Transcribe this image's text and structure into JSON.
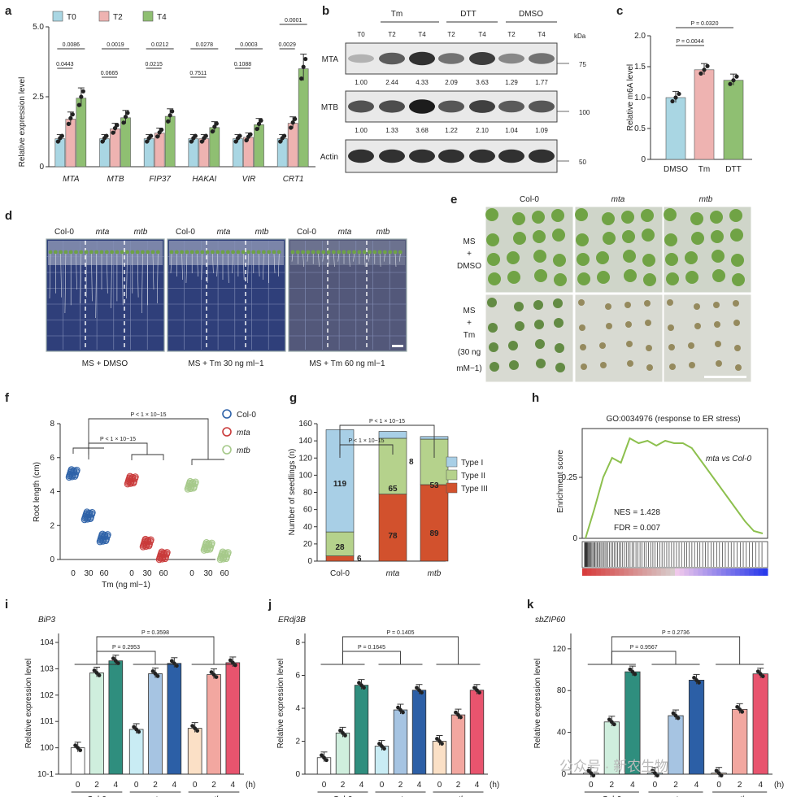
{
  "panels": {
    "a": {
      "letter": "a",
      "ylabel": "Relative expression level",
      "yticks": [
        "0",
        "2.5",
        "5.0"
      ],
      "legend": [
        "T0",
        "T2",
        "T4"
      ],
      "genes": [
        "MTA",
        "MTB",
        "FIP37",
        "HAKAI",
        "VIR",
        "CRT1"
      ],
      "pvals_top": [
        "0.0086",
        "0.0019",
        "0.0212",
        "0.0278",
        "0.0003",
        "0.0001"
      ],
      "pvals_bottom": [
        "0.0443",
        "0.0665",
        "0.0215",
        "0.7511",
        "0.1088",
        "0.0029"
      ]
    },
    "b": {
      "letter": "b",
      "groups": [
        "Tm",
        "DTT",
        "DMSO"
      ],
      "lanes": [
        "T0",
        "T2",
        "T4",
        "T2",
        "T4",
        "T2",
        "T4"
      ],
      "kda": "kDa",
      "rows": [
        {
          "name": "MTA",
          "marker": "75",
          "values": [
            "1.00",
            "2.44",
            "4.33",
            "2.09",
            "3.63",
            "1.29",
            "1.77"
          ]
        },
        {
          "name": "MTB",
          "marker": "100",
          "values": [
            "1.00",
            "1.33",
            "3.68",
            "1.22",
            "2.10",
            "1.04",
            "1.09"
          ]
        },
        {
          "name": "Actin",
          "marker": "50",
          "values": []
        }
      ]
    },
    "c": {
      "letter": "c",
      "ylabel": "Relative m6A level",
      "yticks": [
        "0",
        "0.5",
        "1.0",
        "1.5",
        "2.0"
      ],
      "categories": [
        "DMSO",
        "Tm",
        "DTT"
      ],
      "pvals": [
        "P = 0.0044",
        "P = 0.0320"
      ]
    },
    "d": {
      "letter": "d",
      "genotypes": [
        "Col-0",
        "mta",
        "mtb"
      ],
      "captions": [
        "MS + DMSO",
        "MS + Tm 30 ng ml−1",
        "MS + Tm 60 ng ml−1"
      ]
    },
    "e": {
      "letter": "e",
      "genotypes": [
        "Col-0",
        "mta",
        "mtb"
      ],
      "row1": [
        "MS",
        "+",
        "DMSO"
      ],
      "row2": [
        "MS",
        "+",
        "Tm",
        "(30 ng",
        "mM−1)"
      ]
    },
    "f": {
      "letter": "f",
      "ylabel": "Root length (cm)",
      "xlabel": "Tm (ng ml−1)",
      "yticks": [
        "0",
        "2",
        "4",
        "6",
        "8"
      ],
      "xticks": [
        "0",
        "30",
        "60",
        "0",
        "30",
        "60",
        "0",
        "30",
        "60"
      ],
      "legend": [
        "Col-0",
        "mta",
        "mtb"
      ],
      "pvals": [
        "P < 1 × 10−15",
        "P < 1 × 10−15"
      ]
    },
    "g": {
      "letter": "g",
      "ylabel": "Number of seedlings (n)",
      "yticks": [
        "0",
        "20",
        "40",
        "60",
        "80",
        "100",
        "120",
        "140",
        "160"
      ],
      "categories": [
        "Col-0",
        "mta",
        "mtb"
      ],
      "legend": [
        "Type I",
        "Type II",
        "Type III"
      ],
      "pvals": [
        "P < 1 × 10−15",
        "P < 1 × 10−15"
      ],
      "labels": {
        "col0": [
          "119",
          "28",
          "6"
        ],
        "mta": [
          "8",
          "65",
          "78"
        ],
        "mtb": [
          "3",
          "53",
          "89"
        ]
      }
    },
    "h": {
      "letter": "h",
      "title": "GO:0034976 (response to ER stress)",
      "ylabel": "Enrichment score",
      "yticks": [
        "0",
        "0.25"
      ],
      "comparison": "mta vs Col-0",
      "nes": "NES = 1.428",
      "fdr": "FDR = 0.007"
    },
    "i": {
      "letter": "i",
      "gene": "BiP3",
      "ylabel": "Relative expression level",
      "yticks": [
        "10-1",
        "100",
        "101",
        "102",
        "103",
        "104"
      ],
      "pvals": [
        "P = 0.2953",
        "P = 0.3598"
      ]
    },
    "j": {
      "letter": "j",
      "gene": "ERdj3B",
      "ylabel": "Relative expression level",
      "yticks": [
        "0",
        "2",
        "4",
        "6",
        "8"
      ],
      "pvals": [
        "P = 0.1645",
        "P = 0.1405"
      ]
    },
    "k": {
      "letter": "k",
      "gene": "sbZIP60",
      "ylabel": "Relative expression level",
      "yticks": [
        "0",
        "40",
        "80",
        "120"
      ],
      "pvals": [
        "P = 0.9567",
        "P = 0.2736"
      ]
    },
    "shared": {
      "hours": [
        "0",
        "2",
        "4"
      ],
      "hour_unit": "(h)",
      "genotypes": [
        "Col-0",
        "mta",
        "mtb"
      ]
    },
    "watermark": "公众号 · 新农生物"
  },
  "chart_data": [
    {
      "panel": "a",
      "type": "bar",
      "categories": [
        "MTA",
        "MTB",
        "FIP37",
        "HAKAI",
        "VIR",
        "CRT1"
      ],
      "ylabel": "Relative expression level",
      "ylim": [
        0,
        5
      ],
      "series": [
        {
          "name": "T0",
          "values": [
            1.0,
            1.0,
            1.0,
            1.0,
            1.0,
            1.0
          ]
        },
        {
          "name": "T2",
          "values": [
            1.7,
            1.35,
            1.2,
            1.0,
            1.05,
            1.55
          ]
        },
        {
          "name": "T4",
          "values": [
            2.45,
            1.75,
            1.8,
            1.4,
            1.5,
            3.5
          ]
        }
      ]
    },
    {
      "panel": "c",
      "type": "bar",
      "categories": [
        "DMSO",
        "Tm",
        "DTT"
      ],
      "values": [
        1.0,
        1.45,
        1.28
      ],
      "ylabel": "Relative m6A level",
      "ylim": [
        0,
        2.0
      ]
    },
    {
      "panel": "f",
      "type": "scatter",
      "x": [
        0,
        30,
        60
      ],
      "xlabel": "Tm (ng ml−1)",
      "ylabel": "Root length (cm)",
      "ylim": [
        0,
        8
      ],
      "series": [
        {
          "name": "Col-0",
          "values": [
            5.1,
            2.6,
            1.3
          ]
        },
        {
          "name": "mta",
          "values": [
            4.7,
            1.0,
            0.25
          ]
        },
        {
          "name": "mtb",
          "values": [
            4.4,
            0.8,
            0.25
          ]
        }
      ]
    },
    {
      "panel": "g",
      "type": "bar",
      "categories": [
        "Col-0",
        "mta",
        "mtb"
      ],
      "ylabel": "Number of seedlings (n)",
      "ylim": [
        0,
        160
      ],
      "series": [
        {
          "name": "Type III",
          "values": [
            6,
            78,
            89
          ]
        },
        {
          "name": "Type II",
          "values": [
            28,
            65,
            53
          ]
        },
        {
          "name": "Type I",
          "values": [
            119,
            8,
            3
          ]
        }
      ]
    },
    {
      "panel": "h",
      "type": "line",
      "ylabel": "Enrichment score",
      "ylim": [
        0,
        0.45
      ],
      "x": [
        0,
        0.05,
        0.1,
        0.15,
        0.2,
        0.25,
        0.3,
        0.35,
        0.4,
        0.45,
        0.5,
        0.55,
        0.6,
        0.65,
        0.7,
        0.75,
        0.8,
        0.85,
        0.9,
        0.95,
        1.0
      ],
      "values": [
        0.0,
        0.12,
        0.25,
        0.33,
        0.31,
        0.41,
        0.39,
        0.4,
        0.38,
        0.4,
        0.39,
        0.39,
        0.37,
        0.32,
        0.27,
        0.22,
        0.17,
        0.12,
        0.07,
        0.03,
        0.02
      ]
    },
    {
      "panel": "i",
      "type": "bar",
      "yscale": "log",
      "categories": [
        "Col-0 0",
        "Col-0 2",
        "Col-0 4",
        "mta 0",
        "mta 2",
        "mta 4",
        "mtb 0",
        "mtb 2",
        "mtb 4"
      ],
      "values": [
        1,
        700,
        2000,
        5,
        650,
        1600,
        5.5,
        600,
        1700
      ],
      "ylim": [
        0.1,
        10000
      ]
    },
    {
      "panel": "j",
      "type": "bar",
      "categories": [
        "Col-0 0",
        "Col-0 2",
        "Col-0 4",
        "mta 0",
        "mta 2",
        "mta 4",
        "mtb 0",
        "mtb 2",
        "mtb 4"
      ],
      "values": [
        1.0,
        2.5,
        5.4,
        1.7,
        3.9,
        5.1,
        2.0,
        3.6,
        5.1
      ],
      "ylim": [
        0,
        8
      ]
    },
    {
      "panel": "k",
      "type": "bar",
      "categories": [
        "Col-0 0",
        "Col-0 2",
        "Col-0 4",
        "mta 0",
        "mta 2",
        "mta 4",
        "mtb 0",
        "mtb 2",
        "mtb 4"
      ],
      "values": [
        1,
        50,
        98,
        1,
        56,
        90,
        1,
        62,
        96
      ],
      "ylim": [
        0,
        130
      ]
    }
  ],
  "colors": {
    "t0": "#a9d6e3",
    "t2": "#eeb3b1",
    "t4": "#8fbf72",
    "col0": "#2e62a8",
    "mta": "#c93a3a",
    "mtb": "#a6c98a",
    "type1": "#a8cfe6",
    "type2": "#b5d28c",
    "type3": "#d2512d",
    "gsea": "#8dc04e"
  }
}
